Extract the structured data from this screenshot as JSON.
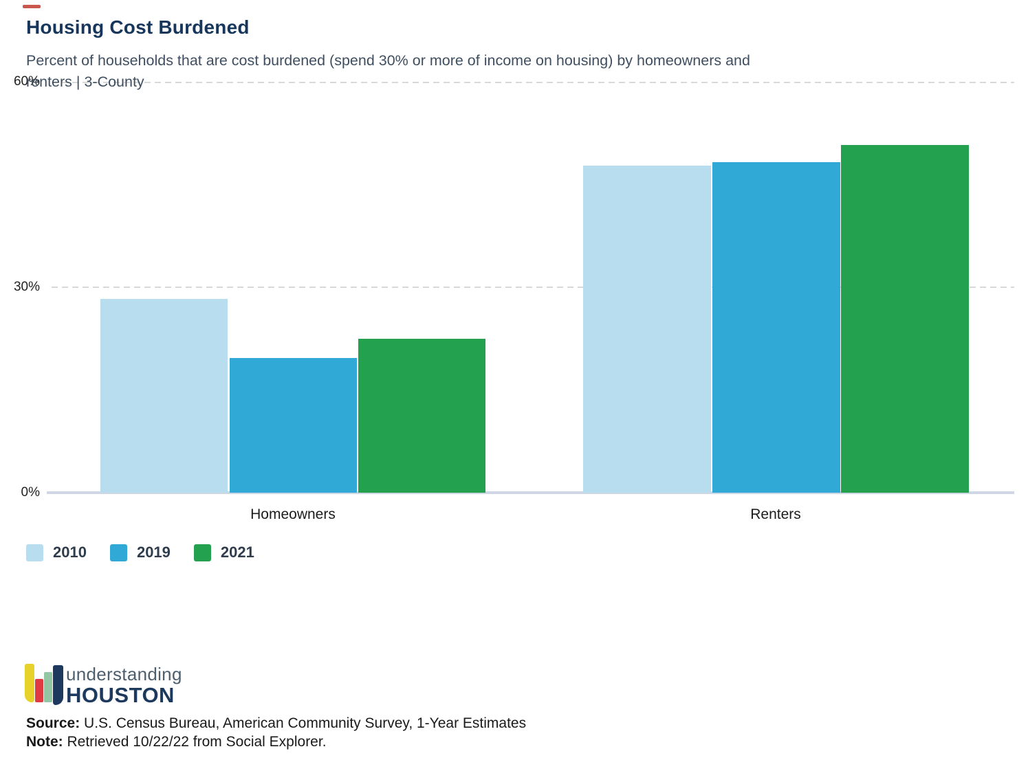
{
  "header": {
    "title": "Housing Cost Burdened",
    "subtitle_line1": "Percent of households that are cost burdened (spend 30% or more of income on housing) by homeowners and",
    "subtitle_line2": "renters | 3-County"
  },
  "chart_data": {
    "type": "bar",
    "title": "Housing Cost Burdened",
    "subtitle": "Percent of households that are cost burdened (spend 30% or more of income on housing) by homeowners and renters | 3-County",
    "categories": [
      "Homeowners",
      "Renters"
    ],
    "series": [
      {
        "name": "2010",
        "color": "#b7ddee",
        "values": [
          28.3,
          47.8
        ]
      },
      {
        "name": "2019",
        "color": "#31a9d6",
        "values": [
          19.7,
          48.3
        ]
      },
      {
        "name": "2021",
        "color": "#23a14e",
        "values": [
          22.5,
          50.8
        ]
      }
    ],
    "ylabel": "",
    "xlabel": "",
    "ylim": [
      0,
      60
    ],
    "yticks": [
      "0%",
      "30%",
      "60%"
    ],
    "grid": "horizontal-dashed",
    "legend_position": "bottom-left"
  },
  "legend": {
    "items": [
      "2010",
      "2019",
      "2021"
    ]
  },
  "logo": {
    "line1": "understanding",
    "line2": "HOUSTON"
  },
  "footer": {
    "source_label": "Source:",
    "source_text": " U.S. Census Bureau, American Community Survey, 1-Year Estimates",
    "note_label": "Note:",
    "note_text": " Retrieved 10/22/22 from Social Explorer."
  },
  "colors": {
    "title": "#16365c",
    "subtitle": "#3f4f61",
    "series_2010": "#b7ddee",
    "series_2019": "#31a9d6",
    "series_2021": "#23a14e",
    "baseline": "#cfd6e4",
    "gridline": "#d8d8d8",
    "logo_navy": "#1d3a5e",
    "logo_yellow": "#e7d22b",
    "logo_red": "#e03a42",
    "logo_green": "#93c7a4"
  }
}
